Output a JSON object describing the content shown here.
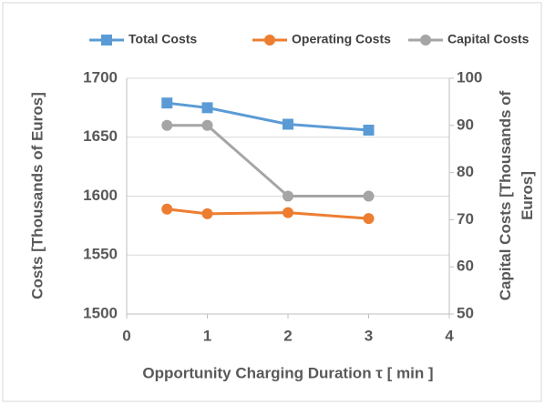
{
  "chart_data": {
    "type": "line",
    "xlabel": "Opportunity Charging Duration τ [ min ]",
    "ylabel": "Costs  [Thousands of Euros]",
    "y2label": "Capital Costs [Thousands of Euros]",
    "x": [
      0.5,
      1,
      2,
      3
    ],
    "series": [
      {
        "name": "Total Costs",
        "color": "#5b9bd5",
        "marker": "square",
        "values": [
          1679,
          1675,
          1661,
          1656
        ]
      },
      {
        "name": "Operating Costs",
        "color": "#ed7d31",
        "marker": "circle",
        "values": [
          1589,
          1585,
          1586,
          1581
        ]
      },
      {
        "name": "Capital Costs",
        "color": "#a5a5a5",
        "marker": "circle",
        "axis": "y2",
        "values": [
          90,
          90,
          75,
          75
        ]
      }
    ],
    "xlim": [
      0,
      4
    ],
    "xticks": [
      0,
      1,
      2,
      3,
      4
    ],
    "ylim": [
      1500,
      1700
    ],
    "yticks": [
      1500,
      1550,
      1600,
      1650,
      1700
    ],
    "y2lim": [
      50,
      100
    ],
    "y2ticks": [
      50,
      60,
      70,
      80,
      90,
      100
    ],
    "grid": true,
    "legend": "top"
  }
}
